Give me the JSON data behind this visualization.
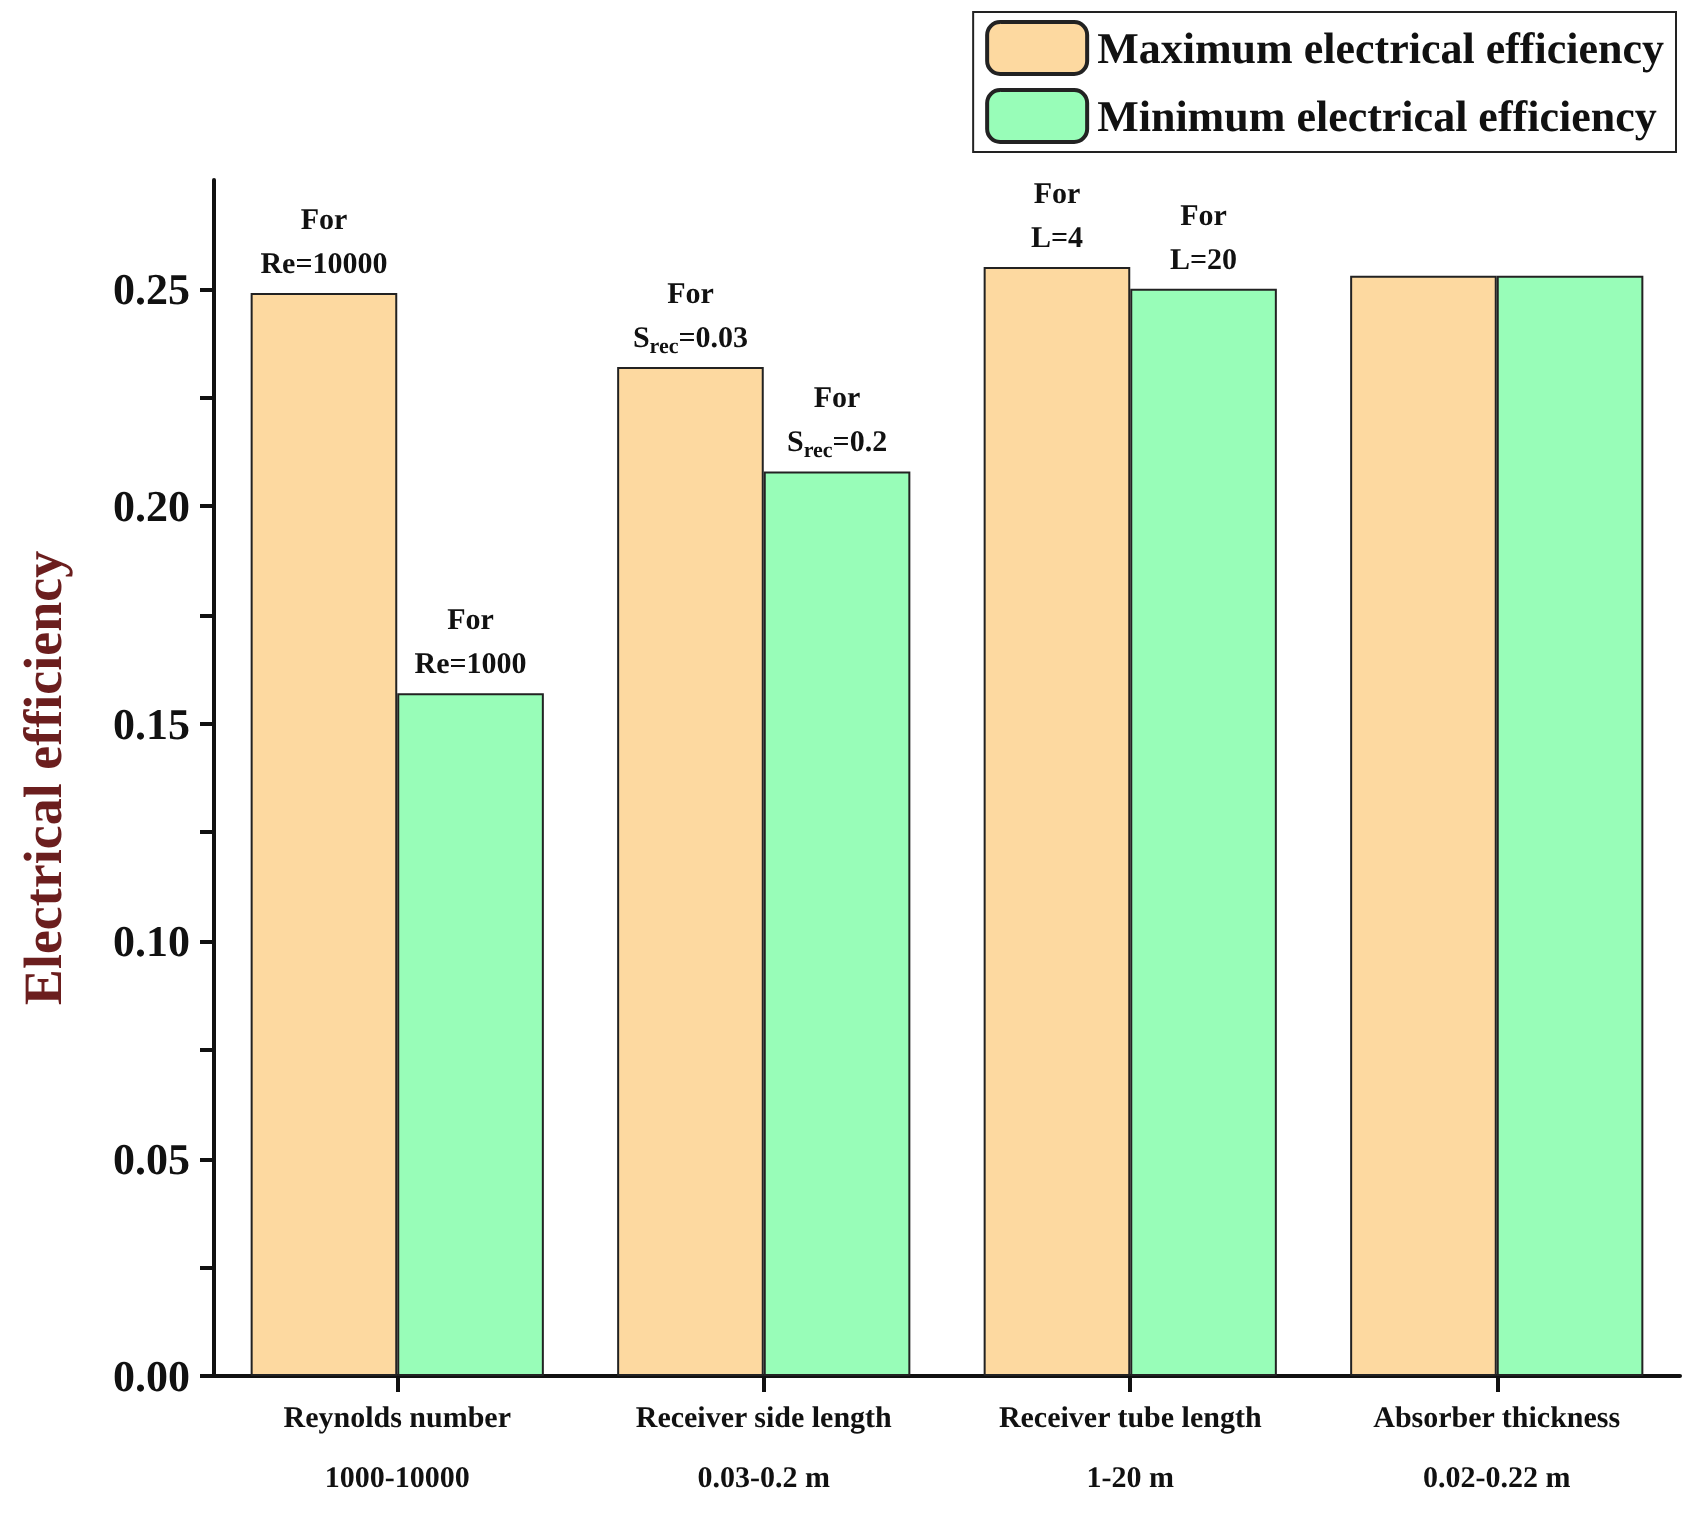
{
  "chart_data": {
    "type": "bar",
    "ylabel": "Electrical efficiency",
    "categories": [
      "Reynolds number\n\n1000-10000",
      "Receiver side length\n\n0.03-0.2 m",
      "Receiver tube length\n\n1-20 m",
      "Absorber thickness\n\n0.02-0.22 m"
    ],
    "series": [
      {
        "name": "Maximum electrical efficiency",
        "color": "#fdd9a0",
        "values": [
          0.249,
          0.232,
          0.255,
          0.253
        ]
      },
      {
        "name": "Minimum electrical efficiency",
        "color": "#98fdb8",
        "values": [
          0.157,
          0.208,
          0.25,
          0.253
        ]
      }
    ],
    "annotations": [
      {
        "text": "For\nRe=10000",
        "x": "Reynolds number\n\n1000-10000",
        "y": 0.249
      },
      {
        "text": "For\nRe=1000",
        "x": "Reynolds number\n\n1000-10000",
        "y": 0.157
      },
      {
        "text": "For\nS$_{rec}$=0.03",
        "x": "Receiver side length\n\n0.03-0.2 m",
        "y": 0.232
      },
      {
        "text": "For\nS$_{rec}$=0.2",
        "x": "Receiver side length\n\n0.03-0.2 m",
        "y": 0.208
      },
      {
        "text": "For\nL=4",
        "x": "Receiver tube length\n\n1-20 m",
        "y": 0.255
      },
      {
        "text": "For\nL=20",
        "x": "Receiver tube length\n\n1-20 m",
        "y": 0.25
      }
    ],
    "ylim": [
      0,
      0.275
    ],
    "yticks": [
      {
        "value": 0,
        "label": "0.00"
      },
      {
        "value": 0.025,
        "label": null
      },
      {
        "value": 0.05,
        "label": "0.05"
      },
      {
        "value": 0.075,
        "label": null
      },
      {
        "value": 0.1,
        "label": "0.10"
      },
      {
        "value": 0.125,
        "label": null
      },
      {
        "value": 0.15,
        "label": "0.15"
      },
      {
        "value": 0.175,
        "label": null
      },
      {
        "value": 0.2,
        "label": "0.20"
      },
      {
        "value": 0.225,
        "label": null
      },
      {
        "value": 0.25,
        "label": "0.25"
      }
    ],
    "grid": false,
    "legend": "top right"
  }
}
